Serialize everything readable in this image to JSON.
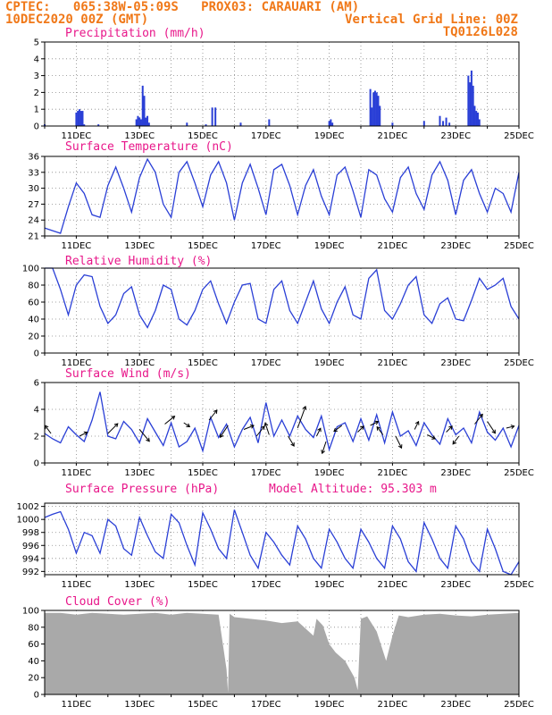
{
  "header": {
    "line1": "CPTEC:   065:38W-05:09S   PROX03: CARAUARI (AM)",
    "line2_left": "10DEC2020 00Z (GMT)",
    "line2_right": "Vertical Grid Line: 00Z",
    "line3_right": "TQ0126L028"
  },
  "colors": {
    "header": "#f07818",
    "title": "#e8178a",
    "line": "#2a3fd6",
    "cloud": "#a9a9a9",
    "grid": "#888888"
  },
  "chart_data": [
    {
      "type": "bar",
      "title": "Precipitation (mm/h)",
      "ylim": [
        0,
        5
      ],
      "yticks": [
        "0",
        "1",
        "2",
        "3",
        "4",
        "5"
      ],
      "x_days": [
        10,
        25
      ],
      "xtick_labels": [
        "11DEC",
        "13DEC",
        "15DEC",
        "17DEC",
        "19DEC",
        "21DEC",
        "23DEC",
        "25DEC"
      ],
      "series": [
        {
          "x": [
            10.0,
            11.0,
            11.05,
            11.1,
            11.15,
            11.2,
            11.25,
            11.7,
            12.9,
            12.95,
            13.0,
            13.05,
            13.1,
            13.15,
            13.2,
            13.25,
            13.3,
            14.5,
            15.1,
            15.3,
            15.4,
            16.2,
            17.1,
            19.0,
            19.05,
            19.1,
            20.3,
            20.35,
            20.4,
            20.45,
            20.5,
            20.55,
            20.6,
            21.0,
            22.0,
            22.5,
            22.6,
            22.7,
            22.8,
            23.4,
            23.45,
            23.5,
            23.55,
            23.6,
            23.65,
            23.7,
            23.75
          ],
          "y": [
            0.1,
            0.8,
            0.9,
            1.0,
            0.9,
            0.9,
            0.1,
            0.1,
            0.4,
            0.6,
            0.5,
            0.4,
            2.4,
            1.8,
            0.5,
            0.6,
            0.2,
            0.2,
            0.1,
            1.1,
            1.1,
            0.2,
            0.4,
            0.3,
            0.4,
            0.2,
            2.2,
            1.1,
            2.0,
            2.1,
            2.0,
            1.8,
            1.2,
            0.2,
            0.3,
            0.6,
            0.3,
            0.5,
            0.2,
            3.0,
            2.6,
            3.3,
            2.4,
            1.2,
            0.9,
            0.8,
            0.4
          ]
        }
      ]
    },
    {
      "type": "line",
      "title": "Surface Temperature (nC)",
      "ylim": [
        21,
        36
      ],
      "yticks": [
        "21",
        "24",
        "27",
        "30",
        "33",
        "36"
      ],
      "series": [
        {
          "x": [
            10.0,
            10.25,
            10.5,
            10.75,
            11.0,
            11.25,
            11.5,
            11.75,
            12.0,
            12.25,
            12.5,
            12.75,
            13.0,
            13.25,
            13.5,
            13.75,
            14.0,
            14.25,
            14.5,
            14.75,
            15.0,
            15.25,
            15.5,
            15.75,
            16.0,
            16.25,
            16.5,
            16.75,
            17.0,
            17.25,
            17.5,
            17.75,
            18.0,
            18.25,
            18.5,
            18.75,
            19.0,
            19.25,
            19.5,
            19.75,
            20.0,
            20.25,
            20.5,
            20.75,
            21.0,
            21.25,
            21.5,
            21.75,
            22.0,
            22.25,
            22.5,
            22.75,
            23.0,
            23.25,
            23.5,
            23.75,
            24.0,
            24.25,
            24.5,
            24.75,
            25.0
          ],
          "y": [
            22.5,
            22.0,
            21.5,
            26.5,
            31.0,
            29.0,
            25.0,
            24.5,
            30.5,
            34.0,
            30.0,
            25.5,
            32.0,
            35.5,
            33.0,
            27.0,
            24.5,
            33.0,
            35.0,
            31.0,
            26.5,
            32.5,
            35.0,
            31.0,
            24.0,
            31.0,
            34.5,
            30.0,
            25.0,
            33.5,
            34.5,
            30.5,
            25.0,
            30.5,
            33.5,
            28.5,
            25.0,
            32.5,
            34.0,
            29.5,
            24.5,
            33.5,
            32.5,
            28.0,
            25.5,
            32.0,
            34.0,
            29.0,
            26.0,
            32.5,
            35.0,
            31.5,
            25.0,
            31.5,
            33.5,
            29.0,
            25.5,
            30.0,
            29.0,
            25.5,
            33.0
          ]
        }
      ]
    },
    {
      "type": "line",
      "title": "Relative Humidity (%)",
      "ylim": [
        0,
        100
      ],
      "yticks": [
        "0",
        "20",
        "40",
        "60",
        "80",
        "100"
      ],
      "series": [
        {
          "x": [
            10.0,
            10.25,
            10.5,
            10.75,
            11.0,
            11.25,
            11.5,
            11.75,
            12.0,
            12.25,
            12.5,
            12.75,
            13.0,
            13.25,
            13.5,
            13.75,
            14.0,
            14.25,
            14.5,
            14.75,
            15.0,
            15.25,
            15.5,
            15.75,
            16.0,
            16.25,
            16.5,
            16.75,
            17.0,
            17.25,
            17.5,
            17.75,
            18.0,
            18.25,
            18.5,
            18.75,
            19.0,
            19.25,
            19.5,
            19.75,
            20.0,
            20.25,
            20.5,
            20.75,
            21.0,
            21.25,
            21.5,
            21.75,
            22.0,
            22.25,
            22.5,
            22.75,
            23.0,
            23.25,
            23.5,
            23.75,
            24.0,
            24.25,
            24.5,
            24.75,
            25.0
          ],
          "y": [
            100,
            100,
            75,
            45,
            80,
            92,
            90,
            55,
            35,
            45,
            70,
            78,
            45,
            30,
            50,
            80,
            75,
            40,
            33,
            50,
            75,
            85,
            58,
            35,
            60,
            80,
            82,
            40,
            35,
            75,
            85,
            50,
            35,
            60,
            85,
            52,
            35,
            60,
            78,
            45,
            40,
            88,
            98,
            50,
            40,
            58,
            80,
            90,
            45,
            35,
            58,
            65,
            40,
            38,
            62,
            88,
            75,
            80,
            88,
            55,
            40
          ]
        }
      ]
    },
    {
      "type": "line",
      "title": "Surface Wind (m/s)",
      "ylim": [
        0,
        6
      ],
      "yticks": [
        "0",
        "2",
        "4",
        "6"
      ],
      "series": [
        {
          "x": [
            10.0,
            10.25,
            10.5,
            10.75,
            11.0,
            11.25,
            11.5,
            11.75,
            12.0,
            12.25,
            12.5,
            12.75,
            13.0,
            13.25,
            13.5,
            13.75,
            14.0,
            14.25,
            14.5,
            14.75,
            15.0,
            15.25,
            15.5,
            15.75,
            16.0,
            16.25,
            16.5,
            16.75,
            17.0,
            17.25,
            17.5,
            17.75,
            18.0,
            18.25,
            18.5,
            18.75,
            19.0,
            19.25,
            19.5,
            19.75,
            20.0,
            20.25,
            20.5,
            20.75,
            21.0,
            21.25,
            21.5,
            21.75,
            22.0,
            22.25,
            22.5,
            22.75,
            23.0,
            23.25,
            23.5,
            23.75,
            24.0,
            24.25,
            24.5,
            24.75,
            25.0
          ],
          "y": [
            2.2,
            1.8,
            1.5,
            2.7,
            2.1,
            1.6,
            3.2,
            5.3,
            2.0,
            1.8,
            3.1,
            2.5,
            1.5,
            3.3,
            2.3,
            1.3,
            3.0,
            1.2,
            1.6,
            2.6,
            0.9,
            3.4,
            1.9,
            2.9,
            1.2,
            2.5,
            3.4,
            1.5,
            4.5,
            2.0,
            3.2,
            2.0,
            3.5,
            2.5,
            1.9,
            3.5,
            1.0,
            2.7,
            3.0,
            1.6,
            3.3,
            1.7,
            3.6,
            1.5,
            3.8,
            2.0,
            2.4,
            1.3,
            3.0,
            2.1,
            1.4,
            3.3,
            2.1,
            2.6,
            1.5,
            3.8,
            2.3,
            1.7,
            2.6,
            1.2,
            2.8
          ]
        }
      ],
      "vectors": [
        [
          10.2,
          2.2,
          -0.3,
          0.4
        ],
        [
          11.1,
          2.0,
          0.4,
          0.2
        ],
        [
          12.0,
          2.2,
          0.5,
          0.5
        ],
        [
          13.0,
          2.5,
          0.5,
          -0.6
        ],
        [
          13.8,
          2.9,
          0.5,
          0.4
        ],
        [
          14.4,
          3.0,
          0.3,
          -0.2
        ],
        [
          15.2,
          3.2,
          0.4,
          0.5
        ],
        [
          15.8,
          2.8,
          -0.4,
          -0.6
        ],
        [
          16.3,
          2.5,
          0.5,
          0.2
        ],
        [
          16.7,
          2.0,
          0.4,
          0.5
        ],
        [
          17.1,
          2.1,
          -0.2,
          0.6
        ],
        [
          17.7,
          2.0,
          0.3,
          -0.5
        ],
        [
          18.0,
          2.6,
          0.4,
          1.1
        ],
        [
          18.6,
          2.0,
          0.2,
          0.4
        ],
        [
          18.9,
          1.6,
          -0.2,
          -0.6
        ],
        [
          19.4,
          2.8,
          -0.4,
          -0.3
        ],
        [
          19.9,
          2.3,
          0.3,
          0.3
        ],
        [
          20.3,
          2.8,
          0.4,
          0.2
        ],
        [
          20.7,
          2.1,
          -0.3,
          0.4
        ],
        [
          21.1,
          2.0,
          0.3,
          -0.6
        ],
        [
          21.7,
          2.5,
          0.2,
          0.4
        ],
        [
          22.1,
          2.1,
          0.4,
          -0.2
        ],
        [
          22.7,
          2.3,
          0.3,
          0.3
        ],
        [
          23.1,
          2.0,
          -0.3,
          -0.4
        ],
        [
          23.6,
          2.9,
          0.4,
          0.5
        ],
        [
          24.0,
          3.1,
          0.4,
          -0.6
        ],
        [
          24.6,
          2.6,
          0.4,
          0.1
        ]
      ]
    },
    {
      "type": "line",
      "title": "Surface Pressure (hPa)",
      "annotation": "Model Altitude: 95.303 m",
      "ylim": [
        991.5,
        1002.5
      ],
      "yticks": [
        "992",
        "994",
        "996",
        "998",
        "1000",
        "1002"
      ],
      "series": [
        {
          "x": [
            10.0,
            10.25,
            10.5,
            10.75,
            11.0,
            11.25,
            11.5,
            11.75,
            12.0,
            12.25,
            12.5,
            12.75,
            13.0,
            13.25,
            13.5,
            13.75,
            14.0,
            14.25,
            14.5,
            14.75,
            15.0,
            15.25,
            15.5,
            15.75,
            16.0,
            16.25,
            16.5,
            16.75,
            17.0,
            17.25,
            17.5,
            17.75,
            18.0,
            18.25,
            18.5,
            18.75,
            19.0,
            19.25,
            19.5,
            19.75,
            20.0,
            20.25,
            20.5,
            20.75,
            21.0,
            21.25,
            21.5,
            21.75,
            22.0,
            22.25,
            22.5,
            22.75,
            23.0,
            23.25,
            23.5,
            23.75,
            24.0,
            24.25,
            24.5,
            24.75,
            25.0
          ],
          "y": [
            1000.3,
            1000.8,
            1001.2,
            998.5,
            994.8,
            998.0,
            997.5,
            994.8,
            1000.0,
            999.0,
            995.5,
            994.5,
            1000.3,
            997.5,
            995.0,
            994.0,
            1000.8,
            999.5,
            996.0,
            993.0,
            1001.0,
            998.5,
            995.5,
            994.0,
            1001.5,
            998.0,
            994.5,
            992.5,
            998.0,
            996.5,
            994.5,
            993.0,
            999.0,
            997.0,
            994.0,
            992.5,
            998.5,
            996.5,
            994.0,
            992.5,
            998.5,
            996.5,
            994.0,
            992.5,
            999.0,
            997.0,
            993.5,
            992.0,
            999.5,
            997.0,
            994.0,
            992.5,
            999.0,
            997.0,
            993.5,
            992.0,
            998.5,
            995.5,
            992.0,
            991.5,
            993.5
          ]
        }
      ]
    },
    {
      "type": "area",
      "title": "Cloud Cover (%)",
      "ylim": [
        0,
        100
      ],
      "yticks": [
        "0",
        "20",
        "40",
        "60",
        "80",
        "100"
      ],
      "series": [
        {
          "x": [
            10.0,
            10.5,
            11.0,
            11.5,
            12.0,
            12.5,
            13.0,
            13.5,
            14.0,
            14.5,
            15.0,
            15.5,
            15.75,
            15.8,
            15.85,
            16.0,
            16.5,
            17.0,
            17.5,
            18.0,
            18.5,
            18.6,
            18.8,
            19.0,
            19.2,
            19.5,
            19.8,
            19.9,
            20.0,
            20.2,
            20.5,
            20.8,
            21.0,
            21.2,
            21.5,
            22.0,
            22.5,
            23.0,
            23.5,
            24.0,
            24.5,
            25.0
          ],
          "y": [
            97,
            97,
            95,
            97,
            96,
            95,
            96,
            97,
            95,
            97,
            96,
            95,
            30,
            2,
            96,
            92,
            90,
            88,
            85,
            87,
            70,
            90,
            82,
            60,
            50,
            40,
            20,
            5,
            90,
            93,
            75,
            40,
            70,
            94,
            92,
            95,
            96,
            94,
            93,
            95,
            96,
            97
          ]
        }
      ]
    }
  ]
}
